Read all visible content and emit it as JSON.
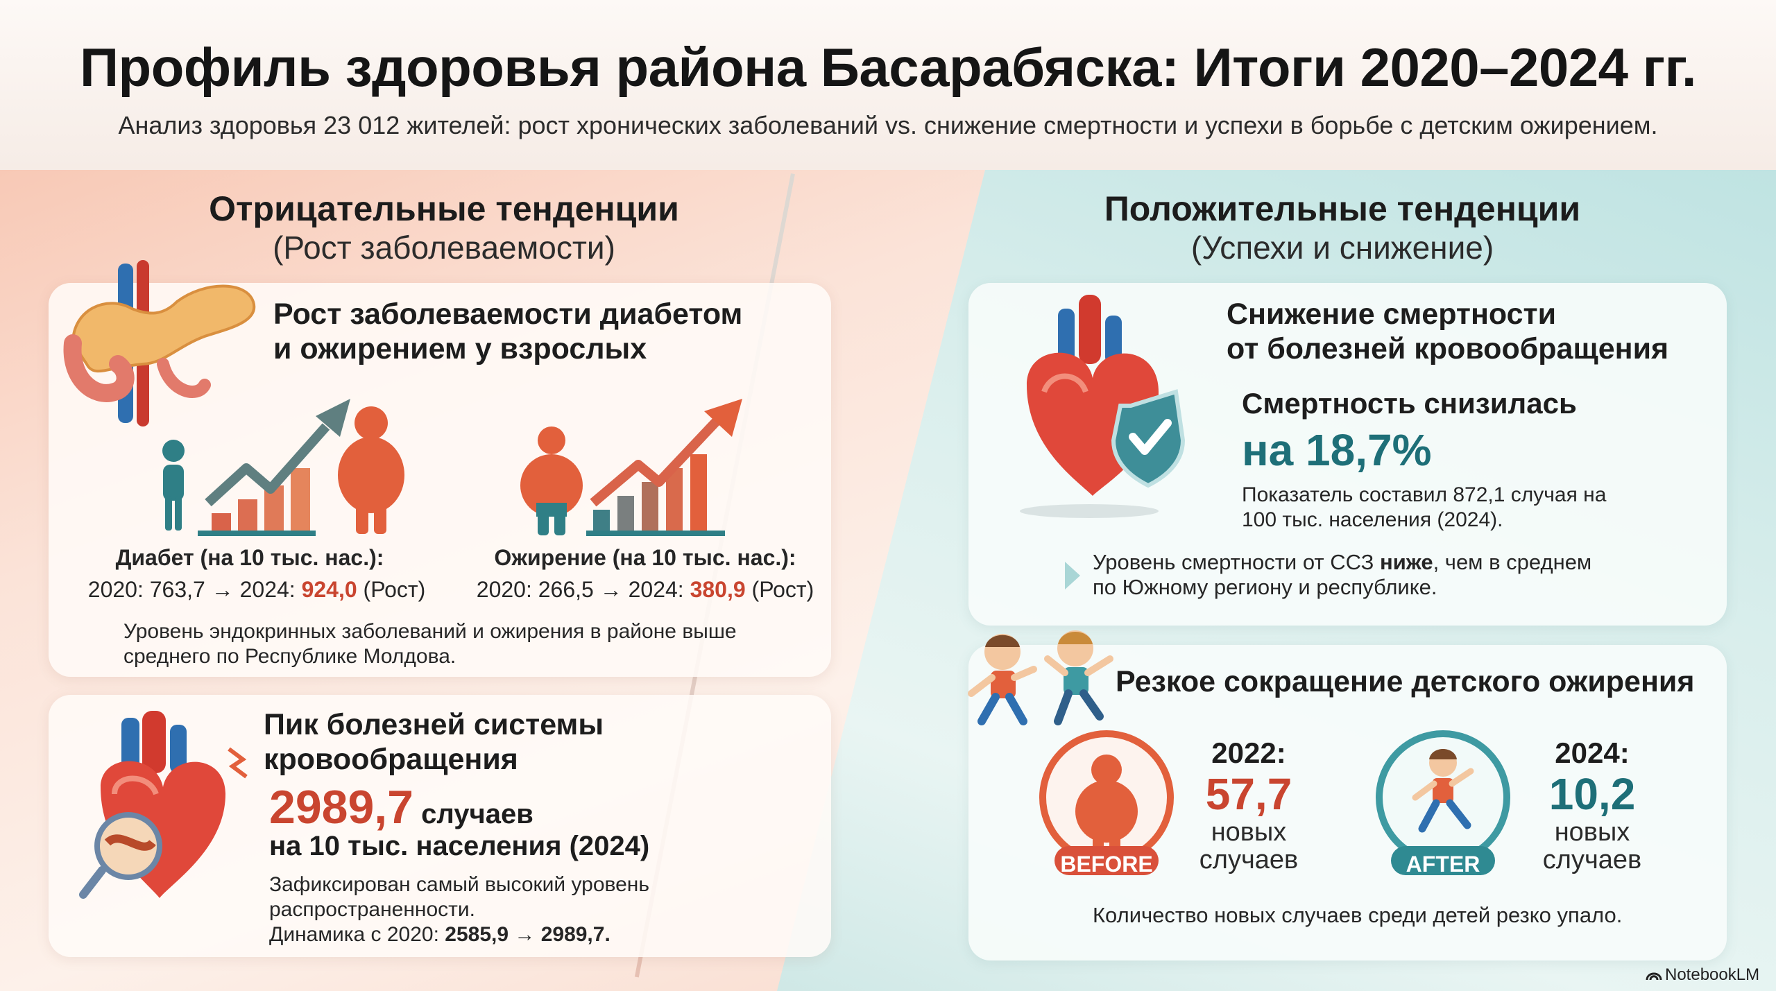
{
  "header": {
    "title": "Профиль здоровья района Басарабяска: Итоги 2020–2024 гг.",
    "subtitle": "Анализ здоровья 23 012 жителей: рост хронических заболеваний vs. снижение смертности и успехи в борьбе с детским ожирением."
  },
  "left": {
    "heading": "Отрицательные тенденции",
    "subheading": "(Рост заболеваемости)",
    "diabetes_card": {
      "title_line1": "Рост заболеваемости диабетом",
      "title_line2": "и ожирением у взрослых",
      "diabetes_label": "Диабет (на 10 тыс. нас.):",
      "diabetes_prefix": "2020: 763,7 → 2024: ",
      "diabetes_value": "924,0",
      "diabetes_suffix": " (Рост)",
      "obesity_label": "Ожирение (на 10 тыс. нас.):",
      "obesity_prefix": "2020: 266,5 → 2024: ",
      "obesity_value": "380,9",
      "obesity_suffix": " (Рост)",
      "note_line1": "Уровень эндокринных заболеваний и ожирения в районе выше",
      "note_line2": "среднего по Республике Молдова."
    },
    "cardio_card": {
      "title_line1": "Пик болезней системы",
      "title_line2": "кровообращения",
      "value": "2989,7",
      "value_unit": " случаев",
      "value_line2": "на 10 тыс. населения (2024)",
      "note_line1": "Зафиксирован самый высокий уровень",
      "note_line2": "распространенности.",
      "dynamics_prefix": "Динамика с 2020: ",
      "dynamics_value": "2585,9 → 2989,7."
    }
  },
  "right": {
    "heading": "Положительные тенденции",
    "subheading": "(Успехи и снижение)",
    "mortality_card": {
      "title_line1": "Снижение смертности",
      "title_line2": "от болезней кровообращения",
      "sub_title": "Смертность снизилась",
      "value": "на 18,7%",
      "detail_line1": "Показатель составил 872,1 случая на",
      "detail_line2": "100 тыс. населения (2024).",
      "note_prefix": "Уровень смертности от ССЗ ",
      "note_bold": "ниже",
      "note_suffix": ", чем в среднем",
      "note_line2": "по Южному региону и республике."
    },
    "child_card": {
      "title": "Резкое сокращение детского ожирения",
      "before_badge": "BEFORE",
      "after_badge": "AFTER",
      "year_before": "2022:",
      "value_before": "57,7",
      "year_after": "2024:",
      "value_after": "10,2",
      "unit_line1": "новых",
      "unit_line2": "случаев",
      "note": "Количество новых случаев среди детей резко упало."
    }
  },
  "footer": {
    "brand": "NotebookLM"
  },
  "colors": {
    "red": "#c9452f",
    "teal": "#1e6f78",
    "orange": "#e2603c"
  }
}
